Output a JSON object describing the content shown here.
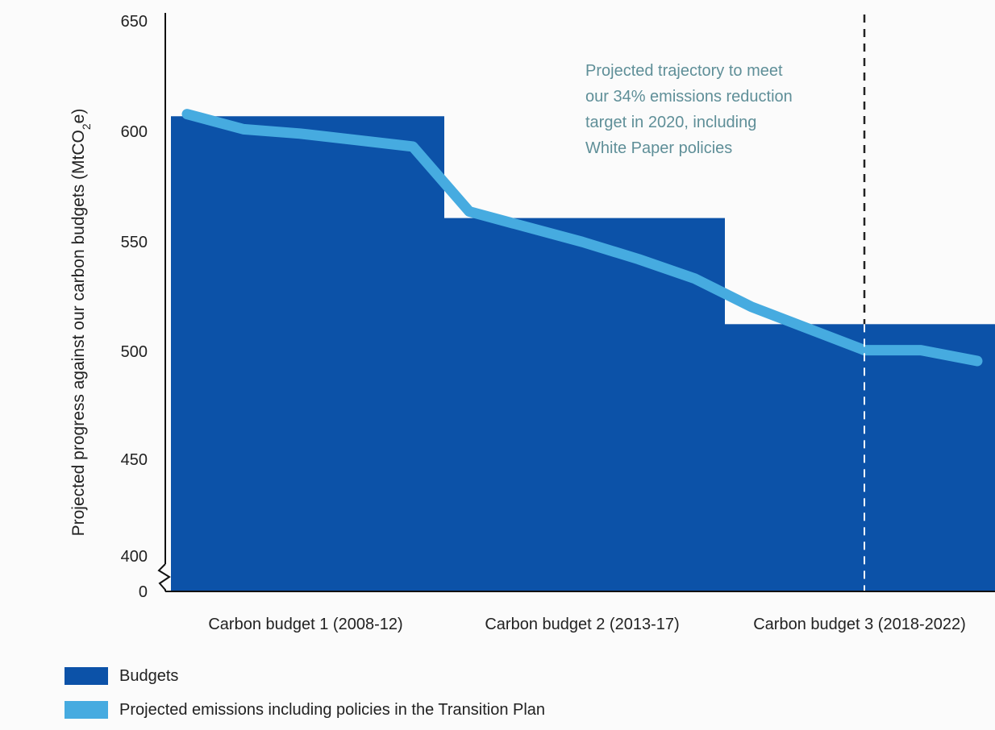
{
  "chart_data": {
    "type": "area",
    "ylabel_main": "Projected progress against our carbon budgets (MtCO",
    "ylabel_sub": "2",
    "ylabel_end": "e)",
    "ytick_labels": [
      "0",
      "400",
      "450",
      "500",
      "550",
      "600",
      "650"
    ],
    "ylim": [
      400,
      650
    ],
    "axis_break": true,
    "grid": false,
    "categories": [
      "Carbon budget 1 (2008-12)",
      "Carbon budget 2 (2013-17)",
      "Carbon budget 3 (2018-2022)"
    ],
    "series": [
      {
        "name": "Budgets",
        "type": "step",
        "color": "#0c52a8",
        "values": [
          606,
          559,
          510
        ]
      },
      {
        "name": "Projected emissions including policies in the Transition Plan",
        "type": "line",
        "color": "#46abe0",
        "x": [
          2008,
          2009,
          2010,
          2011,
          2012,
          2013,
          2014,
          2015,
          2016,
          2017,
          2018,
          2019,
          2020,
          2021,
          2022
        ],
        "values": [
          607,
          600,
          598,
          595,
          592,
          562,
          555,
          548,
          540,
          531,
          518,
          508,
          498,
          498,
          493
        ]
      }
    ],
    "vertical_marker_x": 2020,
    "annotation": [
      "Projected trajectory to meet",
      "our 34% emissions reduction",
      "target in 2020, including",
      "White Paper policies"
    ]
  },
  "legend": {
    "budgets_label": "Budgets",
    "projected_label": "Projected emissions including policies in the Transition Plan"
  }
}
